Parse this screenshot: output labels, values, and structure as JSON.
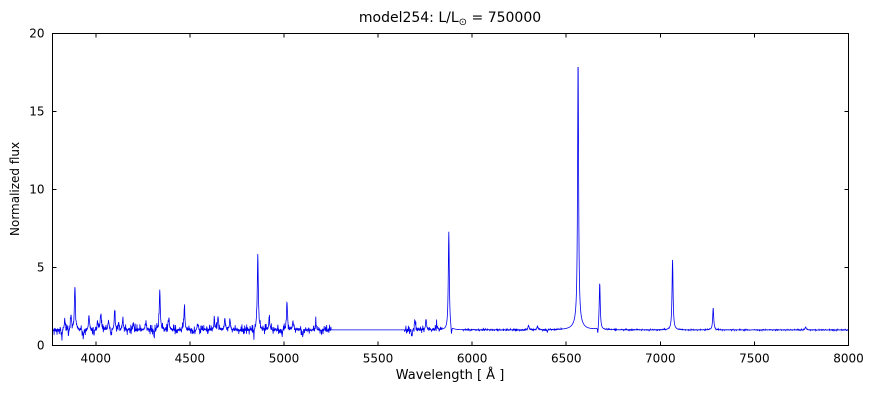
{
  "chart_data": {
    "type": "line",
    "title": "model254: L/L⊙ = 750000",
    "title_parts": {
      "prefix": "model254: L/L",
      "subscript": "⊙",
      "suffix": " = 750000"
    },
    "xlabel": "Wavelength [ Å ]",
    "ylabel": "Normalized flux",
    "xlim": [
      3770,
      8000
    ],
    "ylim": [
      0,
      20
    ],
    "xticks": [
      4000,
      4500,
      5000,
      5500,
      6000,
      6500,
      7000,
      7500,
      8000
    ],
    "yticks": [
      0,
      5,
      10,
      15,
      20
    ],
    "grid": false,
    "legend": "none",
    "line_color": "#0000ee",
    "baseline": 1.0,
    "peaks": [
      {
        "x": 3835,
        "h": 1.7
      },
      {
        "x": 3868,
        "h": 1.9
      },
      {
        "x": 3889,
        "h": 3.8
      },
      {
        "x": 3964,
        "h": 1.9
      },
      {
        "x": 4009,
        "h": 1.5
      },
      {
        "x": 4026,
        "h": 2.1
      },
      {
        "x": 4068,
        "h": 1.6
      },
      {
        "x": 4101,
        "h": 2.1
      },
      {
        "x": 4121,
        "h": 1.5
      },
      {
        "x": 4144,
        "h": 1.6
      },
      {
        "x": 4200,
        "h": 1.4
      },
      {
        "x": 4267,
        "h": 1.5
      },
      {
        "x": 4340,
        "h": 3.5
      },
      {
        "x": 4388,
        "h": 1.7
      },
      {
        "x": 4471,
        "h": 2.45
      },
      {
        "x": 4541,
        "h": 1.4
      },
      {
        "x": 4630,
        "h": 1.7
      },
      {
        "x": 4650,
        "h": 1.8
      },
      {
        "x": 4686,
        "h": 1.7
      },
      {
        "x": 4713,
        "h": 1.7
      },
      {
        "x": 4861,
        "h": 5.9
      },
      {
        "x": 4922,
        "h": 1.8
      },
      {
        "x": 5016,
        "h": 2.85
      },
      {
        "x": 5048,
        "h": 1.6
      },
      {
        "x": 5169,
        "h": 1.5
      },
      {
        "x": 5697,
        "h": 1.6
      },
      {
        "x": 5755,
        "h": 1.7
      },
      {
        "x": 5812,
        "h": 1.4
      },
      {
        "x": 5876,
        "h": 7.3
      },
      {
        "x": 6300,
        "h": 1.3
      },
      {
        "x": 6347,
        "h": 1.25
      },
      {
        "x": 6563,
        "h": 17.9
      },
      {
        "x": 6678,
        "h": 4.0
      },
      {
        "x": 7065,
        "h": 5.5
      },
      {
        "x": 7281,
        "h": 2.4
      },
      {
        "x": 7772,
        "h": 1.2
      }
    ],
    "broad": [
      {
        "x": 6563,
        "amp": 0.5,
        "w": 22
      }
    ],
    "dips": [
      {
        "x": 3820,
        "v": 0.5
      },
      {
        "x": 3855,
        "v": 0.55
      },
      {
        "x": 3933,
        "v": 0.45
      },
      {
        "x": 3990,
        "v": 0.6
      },
      {
        "x": 4080,
        "v": 0.6
      },
      {
        "x": 4310,
        "v": 0.7
      },
      {
        "x": 4430,
        "v": 0.75
      },
      {
        "x": 4520,
        "v": 0.7
      },
      {
        "x": 4840,
        "v": 0.55
      },
      {
        "x": 4990,
        "v": 0.55
      },
      {
        "x": 5100,
        "v": 0.6
      },
      {
        "x": 5680,
        "v": 0.65
      },
      {
        "x": 5890,
        "v": 0.45
      },
      {
        "x": 6400,
        "v": 0.85
      },
      {
        "x": 6668,
        "v": 0.5
      }
    ],
    "noise": [
      {
        "from": 3770,
        "to": 5250,
        "amp": 0.16
      },
      {
        "from": 5640,
        "to": 5840,
        "amp": 0.13
      },
      {
        "from": 5950,
        "to": 6480,
        "amp": 0.035
      },
      {
        "from": 6700,
        "to": 8000,
        "amp": 0.02
      }
    ]
  }
}
